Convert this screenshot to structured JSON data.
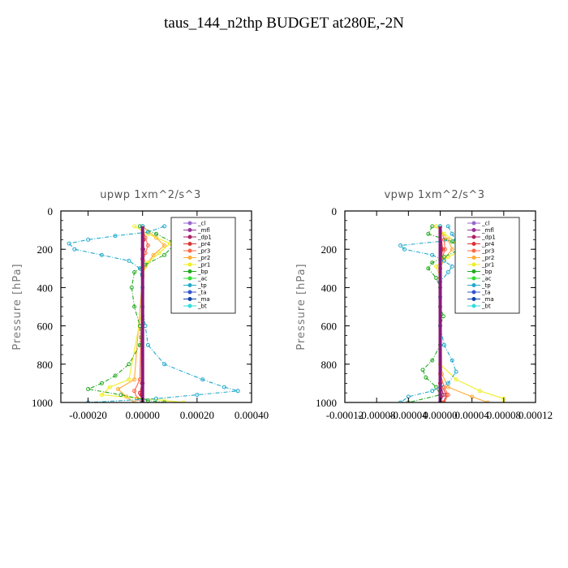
{
  "title": "taus_144_n2thp  BUDGET at280E,-2N",
  "chart_data": [
    {
      "type": "line",
      "title": "upwp   1xm^2/s^3",
      "ylabel": "Pressure [hPa]",
      "xlim": [
        -0.0003,
        0.0004
      ],
      "ylim": [
        1000,
        0
      ],
      "xticks": [
        "-0.00020",
        "0.00000",
        "0.00020",
        "0.00040"
      ],
      "xtick_values": [
        -0.0002,
        0,
        0.0002,
        0.0004
      ],
      "yticks": [
        "0",
        "200",
        "400",
        "600",
        "800",
        "1000"
      ],
      "ytick_values": [
        0,
        200,
        400,
        600,
        800,
        1000
      ],
      "legend_position": "upper-right",
      "series": [
        {
          "name": "_cl",
          "color": "#9966cc",
          "pressure": [
            80,
            1000
          ],
          "values": [
            0,
            0
          ]
        },
        {
          "name": "_mfl",
          "color": "#993399",
          "pressure": [
            80,
            1000
          ],
          "values": [
            0,
            0
          ]
        },
        {
          "name": "_dp1",
          "color": "#aa2266",
          "pressure": [
            80,
            150,
            200,
            250,
            900,
            960,
            1000
          ],
          "values": [
            0,
            3e-06,
            2e-06,
            0,
            0,
            -5e-06,
            0
          ]
        },
        {
          "name": "_pr4",
          "color": "#dd3333",
          "pressure": [
            80,
            150,
            200,
            300,
            900,
            950,
            1000
          ],
          "values": [
            0,
            4e-06,
            0,
            0,
            -2e-06,
            -1e-05,
            0
          ]
        },
        {
          "name": "_pr3",
          "color": "#ff6644",
          "pressure": [
            80,
            140,
            180,
            220,
            260,
            300,
            880,
            940,
            980,
            1000
          ],
          "values": [
            0,
            1e-05,
            2e-05,
            1e-05,
            2e-06,
            0,
            -1e-05,
            -3e-05,
            -2e-05,
            0
          ]
        },
        {
          "name": "_pr2",
          "color": "#ffaa33",
          "pressure": [
            80,
            140,
            180,
            230,
            290,
            340,
            880,
            930,
            970,
            1000
          ],
          "values": [
            0,
            5e-05,
            8e-05,
            4e-05,
            1e-05,
            0,
            -3e-05,
            -9e-05,
            -6e-05,
            -3e-05
          ]
        },
        {
          "name": "_pr1",
          "color": "#eeee22",
          "pressure": [
            80,
            120,
            170,
            220,
            270,
            330,
            500,
            880,
            920,
            960,
            990,
            1000
          ],
          "values": [
            -3e-05,
            2e-05,
            0.0001,
            6e-05,
            2e-05,
            0,
            0,
            -5e-05,
            -0.00012,
            -0.00015,
            8e-05,
            0.00015
          ]
        },
        {
          "name": "_bp",
          "color": "#22aa22",
          "pressure": [
            80,
            120,
            170,
            230,
            280,
            320,
            400,
            500,
            600,
            700,
            800,
            860,
            900,
            930,
            960,
            990,
            1000
          ],
          "values": [
            -1e-05,
            5e-05,
            0.00012,
            8e-05,
            1e-05,
            -3e-05,
            -4e-05,
            -3e-05,
            -1e-05,
            -1e-05,
            -5e-05,
            -0.0001,
            -0.00015,
            -0.0002,
            -8e-05,
            2e-05,
            8e-05
          ]
        },
        {
          "name": "_ac",
          "color": "#33dd33",
          "pressure": [
            80,
            1000
          ],
          "values": [
            0,
            0
          ]
        },
        {
          "name": "_tp",
          "color": "#22aacc",
          "pressure": [
            80,
            110,
            130,
            150,
            170,
            200,
            230,
            260,
            300,
            400,
            500,
            600,
            700,
            800,
            880,
            920,
            940,
            960,
            980,
            1000
          ],
          "values": [
            8e-05,
            2e-05,
            -0.0001,
            -0.0002,
            -0.00027,
            -0.00025,
            -0.00015,
            -5e-05,
            -1e-05,
            0,
            0,
            1e-05,
            2e-05,
            8e-05,
            0.00022,
            0.0003,
            0.00035,
            0.0002,
            5e-05,
            -0.0002
          ]
        },
        {
          "name": "_ta",
          "color": "#3355cc",
          "pressure": [
            80,
            1000
          ],
          "values": [
            0,
            0
          ]
        },
        {
          "name": "_ma",
          "color": "#1144aa",
          "pressure": [
            80,
            1000
          ],
          "values": [
            0,
            0
          ]
        },
        {
          "name": "_bt",
          "color": "#33dddd",
          "pressure": [
            80,
            1000
          ],
          "values": [
            0,
            0
          ]
        }
      ]
    },
    {
      "type": "line",
      "title": "vpwp   1xm^2/s^3",
      "ylabel": "Pressure [hPa]",
      "xlim": [
        -0.00012,
        0.00012
      ],
      "ylim": [
        1000,
        0
      ],
      "xticks": [
        "-0.00012",
        "-0.00008",
        "-0.00004",
        "0.00000",
        "0.00004",
        "0.00008",
        "0.00012"
      ],
      "xtick_values": [
        -0.00012,
        -8e-05,
        -4e-05,
        0,
        4e-05,
        8e-05,
        0.00012
      ],
      "yticks": [
        "0",
        "200",
        "400",
        "600",
        "800",
        "1000"
      ],
      "ytick_values": [
        0,
        200,
        400,
        600,
        800,
        1000
      ],
      "legend_position": "upper-right",
      "series": [
        {
          "name": "_cl",
          "color": "#9966cc",
          "pressure": [
            80,
            1000
          ],
          "values": [
            0,
            0
          ]
        },
        {
          "name": "_mfl",
          "color": "#993399",
          "pressure": [
            80,
            1000
          ],
          "values": [
            0,
            0
          ]
        },
        {
          "name": "_dp1",
          "color": "#aa2266",
          "pressure": [
            80,
            200,
            300,
            900,
            960,
            1000
          ],
          "values": [
            0,
            2e-06,
            0,
            0,
            4e-06,
            0
          ]
        },
        {
          "name": "_pr4",
          "color": "#dd3333",
          "pressure": [
            80,
            200,
            300,
            900,
            960,
            1000
          ],
          "values": [
            0,
            3e-06,
            0,
            0,
            8e-06,
            4e-06
          ]
        },
        {
          "name": "_pr3",
          "color": "#ff6644",
          "pressure": [
            80,
            150,
            200,
            250,
            300,
            850,
            920,
            960,
            1000
          ],
          "values": [
            0,
            5e-06,
            6e-06,
            2e-06,
            0,
            0,
            5e-06,
            1e-05,
            5e-06
          ]
        },
        {
          "name": "_pr2",
          "color": "#ffaa33",
          "pressure": [
            80,
            150,
            200,
            250,
            300,
            850,
            920,
            970,
            1000
          ],
          "values": [
            -5e-06,
            1e-05,
            1.5e-05,
            5e-06,
            0,
            2e-06,
            1e-05,
            4e-05,
            6e-05
          ]
        },
        {
          "name": "_pr1",
          "color": "#eeee22",
          "pressure": [
            80,
            120,
            160,
            200,
            240,
            290,
            350,
            800,
            880,
            940,
            980,
            1000
          ],
          "values": [
            -5e-06,
            5e-06,
            2e-05,
            3e-05,
            1e-05,
            -5e-06,
            0,
            0,
            2e-05,
            5e-05,
            8e-05,
            8e-05
          ]
        },
        {
          "name": "_bp",
          "color": "#22aa22",
          "pressure": [
            80,
            120,
            160,
            200,
            240,
            270,
            300,
            350,
            400,
            500,
            550,
            600,
            700,
            780,
            830,
            870,
            920,
            960,
            1000
          ],
          "values": [
            -1e-05,
            -1.5e-05,
            1.5e-05,
            2.5e-05,
            5e-06,
            -1e-05,
            -1.5e-05,
            -5e-06,
            0,
            0,
            4e-06,
            0,
            0,
            -1e-05,
            -2.2e-05,
            -1.8e-05,
            -5e-06,
            0,
            -4e-05
          ]
        },
        {
          "name": "_ac",
          "color": "#33dd33",
          "pressure": [
            80,
            1000
          ],
          "values": [
            0,
            0
          ]
        },
        {
          "name": "_tp",
          "color": "#22aacc",
          "pressure": [
            80,
            120,
            150,
            180,
            200,
            230,
            260,
            290,
            320,
            370,
            450,
            600,
            700,
            780,
            840,
            900,
            940,
            970,
            1000
          ],
          "values": [
            1e-05,
            1.5e-05,
            2e-05,
            -5e-05,
            -4.5e-05,
            -1e-05,
            5e-06,
            1.5e-05,
            1e-05,
            0,
            0,
            0,
            5e-06,
            1.5e-05,
            2e-05,
            1e-05,
            -1e-05,
            -4e-05,
            -5e-05
          ]
        },
        {
          "name": "_ta",
          "color": "#3355cc",
          "pressure": [
            80,
            1000
          ],
          "values": [
            0,
            0
          ]
        },
        {
          "name": "_ma",
          "color": "#1144aa",
          "pressure": [
            80,
            1000
          ],
          "values": [
            0,
            0
          ]
        },
        {
          "name": "_bt",
          "color": "#33dddd",
          "pressure": [
            80,
            1000
          ],
          "values": [
            0,
            0
          ]
        }
      ]
    }
  ]
}
